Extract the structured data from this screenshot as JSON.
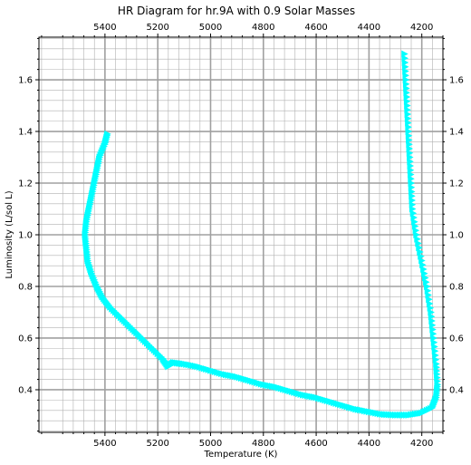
{
  "chart_data": {
    "type": "scatter",
    "title": "HR Diagram for hr.9A with 0.9 Solar Masses",
    "xlabel": "Temperature (K)",
    "ylabel": "Luminosity (L/sol L)",
    "xlim": [
      5650,
      4120
    ],
    "ylim": [
      0.235,
      1.765
    ],
    "x_inverted": true,
    "x_ticks": [
      5400,
      5200,
      5000,
      4800,
      4600,
      4400,
      4200
    ],
    "y_ticks": [
      0.4,
      0.6,
      0.8,
      1.0,
      1.2,
      1.4,
      1.6
    ],
    "x_tick_labels": [
      "5400",
      "5200",
      "5000",
      "4800",
      "4600",
      "4400",
      "4200"
    ],
    "y_tick_labels": [
      "0.4",
      "0.6",
      "0.8",
      "1.0",
      "1.2",
      "1.4",
      "1.6"
    ],
    "ticks_mirrored": true,
    "grid": true,
    "minor_grid": true,
    "marker": "triangle-right",
    "color": "#00ffff",
    "path": [
      [
        5390,
        1.39
      ],
      [
        5400,
        1.35
      ],
      [
        5420,
        1.3
      ],
      [
        5430,
        1.25
      ],
      [
        5440,
        1.2
      ],
      [
        5450,
        1.15
      ],
      [
        5460,
        1.1
      ],
      [
        5470,
        1.05
      ],
      [
        5475,
        1.0
      ],
      [
        5470,
        0.95
      ],
      [
        5465,
        0.9
      ],
      [
        5450,
        0.85
      ],
      [
        5430,
        0.8
      ],
      [
        5410,
        0.76
      ],
      [
        5380,
        0.72
      ],
      [
        5340,
        0.68
      ],
      [
        5300,
        0.64
      ],
      [
        5260,
        0.6
      ],
      [
        5220,
        0.56
      ],
      [
        5180,
        0.52
      ],
      [
        5160,
        0.49
      ],
      [
        5140,
        0.505
      ],
      [
        5100,
        0.5
      ],
      [
        5050,
        0.49
      ],
      [
        5000,
        0.475
      ],
      [
        4950,
        0.46
      ],
      [
        4900,
        0.45
      ],
      [
        4850,
        0.435
      ],
      [
        4800,
        0.42
      ],
      [
        4750,
        0.41
      ],
      [
        4700,
        0.395
      ],
      [
        4650,
        0.38
      ],
      [
        4600,
        0.37
      ],
      [
        4550,
        0.355
      ],
      [
        4500,
        0.34
      ],
      [
        4450,
        0.325
      ],
      [
        4400,
        0.315
      ],
      [
        4350,
        0.305
      ],
      [
        4300,
        0.302
      ],
      [
        4250,
        0.302
      ],
      [
        4200,
        0.31
      ],
      [
        4160,
        0.33
      ],
      [
        4145,
        0.37
      ],
      [
        4140,
        0.42
      ],
      [
        4145,
        0.5
      ],
      [
        4155,
        0.6
      ],
      [
        4165,
        0.7
      ],
      [
        4180,
        0.8
      ],
      [
        4200,
        0.9
      ],
      [
        4220,
        1.0
      ],
      [
        4235,
        1.1
      ],
      [
        4240,
        1.2
      ],
      [
        4245,
        1.3
      ],
      [
        4250,
        1.4
      ],
      [
        4255,
        1.5
      ],
      [
        4260,
        1.6
      ],
      [
        4265,
        1.7
      ]
    ]
  }
}
